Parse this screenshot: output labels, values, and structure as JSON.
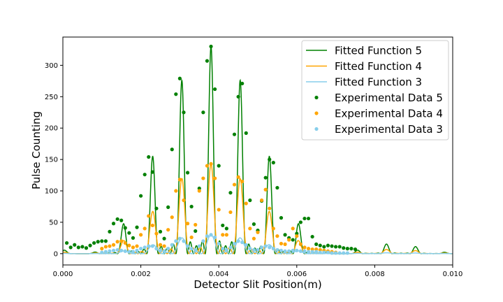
{
  "chart_data": {
    "type": "line",
    "title": "",
    "xlabel": "Detector Slit Position(m)",
    "ylabel": "Pulse Counting",
    "xlim": [
      0.0,
      0.01
    ],
    "ylim": [
      -18,
      345
    ],
    "xticks": [
      0.0,
      0.002,
      0.004,
      0.006,
      0.008,
      0.01
    ],
    "xtick_labels": [
      "0.000",
      "0.002",
      "0.004",
      "0.006",
      "0.008",
      "0.010"
    ],
    "yticks": [
      0,
      50,
      100,
      150,
      200,
      250,
      300
    ],
    "ytick_labels": [
      "0",
      "50",
      "100",
      "150",
      "200",
      "250",
      "300"
    ],
    "grid": false,
    "legend_position": "top-right",
    "fit_model": {
      "center": 0.0038,
      "slit_period": 0.00075,
      "envelope_width": 0.00325,
      "n_slits": [
        5,
        4,
        3
      ]
    },
    "series": [
      {
        "name": "Fitted Function 5",
        "kind": "line",
        "color": "#008000",
        "x_range": [
          0.0,
          0.01
        ],
        "peak": 330,
        "floor": 5
      },
      {
        "name": "Fitted Function 4",
        "kind": "line",
        "color": "#ffa500",
        "x_range": [
          0.0,
          0.01
        ],
        "peak": 143,
        "floor": 2
      },
      {
        "name": "Fitted Function 3",
        "kind": "line",
        "color": "#87ceeb",
        "x_range": [
          0.0,
          0.01
        ],
        "peak": 30,
        "floor": 1
      },
      {
        "name": "Experimental Data 5",
        "kind": "scatter",
        "color": "#008000",
        "x": [
          0.0001,
          0.0002,
          0.0003,
          0.0004,
          0.0005,
          0.0006,
          0.0007,
          0.0008,
          0.0009,
          0.001,
          0.0011,
          0.0012,
          0.0013,
          0.0014,
          0.0015,
          0.0016,
          0.0017,
          0.0018,
          0.0019,
          0.002,
          0.0021,
          0.0022,
          0.0023,
          0.0024,
          0.0025,
          0.0026,
          0.0027,
          0.0028,
          0.0029,
          0.003,
          0.0031,
          0.0032,
          0.0033,
          0.0034,
          0.0035,
          0.0036,
          0.0037,
          0.0038,
          0.0039,
          0.004,
          0.0041,
          0.0042,
          0.0043,
          0.0044,
          0.0045,
          0.0046,
          0.0047,
          0.0048,
          0.0049,
          0.005,
          0.0051,
          0.0052,
          0.0053,
          0.0054,
          0.0055,
          0.0056,
          0.0057,
          0.0058,
          0.0059,
          0.006,
          0.0061,
          0.0062,
          0.0063,
          0.0064,
          0.0065,
          0.0066,
          0.0067,
          0.0068,
          0.0069,
          0.007,
          0.0071,
          0.0072,
          0.0073,
          0.0074,
          0.0075
        ],
        "y": [
          17,
          10,
          14,
          10,
          11,
          9,
          13,
          17,
          19,
          20,
          20,
          35,
          48,
          55,
          53,
          41,
          33,
          25,
          42,
          92,
          126,
          154,
          130,
          72,
          35,
          24,
          74,
          166,
          254,
          279,
          225,
          129,
          75,
          36,
          104,
          225,
          307,
          330,
          262,
          140,
          45,
          40,
          97,
          190,
          250,
          271,
          192,
          85,
          47,
          37,
          84,
          121,
          150,
          145,
          105,
          57,
          30,
          25,
          22,
          32,
          50,
          56,
          56,
          27,
          15,
          13,
          11,
          13,
          12,
          11,
          11,
          9,
          8,
          8,
          7
        ]
      },
      {
        "name": "Experimental Data 4",
        "kind": "scatter",
        "color": "#ffa500",
        "x": [
          0.001,
          0.0011,
          0.0012,
          0.0013,
          0.0014,
          0.0015,
          0.0016,
          0.0017,
          0.0018,
          0.0019,
          0.002,
          0.0021,
          0.0022,
          0.0023,
          0.0024,
          0.0025,
          0.0026,
          0.0027,
          0.0028,
          0.0029,
          0.003,
          0.0031,
          0.0032,
          0.0033,
          0.0034,
          0.0035,
          0.0036,
          0.0037,
          0.0038,
          0.0039,
          0.004,
          0.0041,
          0.0042,
          0.0043,
          0.0044,
          0.0045,
          0.0046,
          0.0047,
          0.0048,
          0.0049,
          0.005,
          0.0051,
          0.0052,
          0.0053,
          0.0054,
          0.0055,
          0.0056,
          0.0057,
          0.0058,
          0.0059,
          0.006,
          0.0061,
          0.0062,
          0.0063,
          0.0064,
          0.0065,
          0.0066,
          0.0067,
          0.0068,
          0.0069,
          0.007
        ],
        "y": [
          8,
          11,
          12,
          14,
          19,
          20,
          17,
          13,
          10,
          12,
          30,
          40,
          60,
          45,
          32,
          14,
          12,
          38,
          58,
          100,
          118,
          85,
          48,
          26,
          46,
          100,
          120,
          140,
          143,
          120,
          70,
          30,
          30,
          66,
          110,
          122,
          115,
          80,
          40,
          24,
          34,
          85,
          102,
          72,
          40,
          28,
          16,
          15,
          22,
          40,
          28,
          15,
          10,
          8,
          7,
          7,
          6,
          5,
          4,
          3,
          2
        ]
      },
      {
        "name": "Experimental Data 3",
        "kind": "scatter",
        "color": "#87ceeb",
        "x": [
          0.001,
          0.0011,
          0.0012,
          0.0013,
          0.0014,
          0.0015,
          0.0016,
          0.0017,
          0.0018,
          0.0019,
          0.002,
          0.0021,
          0.0022,
          0.0023,
          0.0024,
          0.0025,
          0.0026,
          0.0027,
          0.0028,
          0.0029,
          0.003,
          0.0031,
          0.0032,
          0.0033,
          0.0034,
          0.0035,
          0.0036,
          0.0037,
          0.0038,
          0.0039,
          0.004,
          0.0041,
          0.0042,
          0.0043,
          0.0044,
          0.0045,
          0.0046,
          0.0047,
          0.0048,
          0.0049,
          0.005,
          0.0051,
          0.0052,
          0.0053,
          0.0054,
          0.0055,
          0.0056,
          0.0057,
          0.0058,
          0.0059,
          0.006,
          0.0061,
          0.0062,
          0.0063,
          0.0064,
          0.0065,
          0.0066,
          0.0067,
          0.0068,
          0.0069,
          0.007,
          0.0071,
          0.0072,
          0.0073
        ],
        "y": [
          2,
          3,
          4,
          5,
          6,
          5,
          4,
          3,
          3,
          5,
          8,
          10,
          12,
          12,
          8,
          5,
          4,
          8,
          14,
          20,
          24,
          20,
          12,
          8,
          6,
          12,
          20,
          28,
          30,
          26,
          16,
          8,
          6,
          10,
          16,
          20,
          18,
          14,
          8,
          6,
          6,
          10,
          12,
          10,
          8,
          6,
          5,
          4,
          4,
          5,
          5,
          4,
          4,
          3,
          3,
          3,
          2,
          2,
          2,
          1,
          1,
          1,
          1,
          1
        ]
      }
    ]
  }
}
